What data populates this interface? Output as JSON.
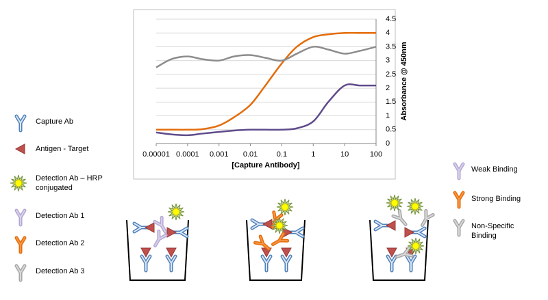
{
  "chart_data": {
    "type": "line",
    "x_label": "[Capture Antibody]",
    "y_label": "Absorbance @ 450nm",
    "log_x": true,
    "grid": true,
    "y_axis_side": "right",
    "x": [
      1e-05,
      3e-05,
      0.0001,
      0.0003,
      0.001,
      0.003,
      0.01,
      0.03,
      0.1,
      0.3,
      1,
      3,
      10,
      30,
      100
    ],
    "series": [
      {
        "name": "Weak Binding",
        "color": "#5f4b8b",
        "values": [
          0.4,
          0.33,
          0.3,
          0.36,
          0.42,
          0.47,
          0.5,
          0.5,
          0.5,
          0.55,
          0.8,
          1.5,
          2.1,
          2.1,
          2.1
        ]
      },
      {
        "name": "Strong Binding",
        "color": "#e46c0a",
        "values": [
          0.5,
          0.5,
          0.5,
          0.52,
          0.65,
          0.95,
          1.4,
          2.1,
          2.9,
          3.5,
          3.85,
          3.95,
          4.0,
          4.0,
          4.0
        ]
      },
      {
        "name": "Non-Specific Binding",
        "color": "#8c8c8c",
        "values": [
          2.75,
          3.05,
          3.15,
          3.05,
          3.0,
          3.15,
          3.2,
          3.1,
          3.0,
          3.25,
          3.5,
          3.4,
          3.25,
          3.35,
          3.5
        ]
      }
    ],
    "xlim": [
      1e-05,
      100
    ],
    "xticks": [
      1e-05,
      0.0001,
      0.001,
      0.01,
      0.1,
      1,
      10,
      100
    ],
    "ylim": [
      0,
      4.5
    ],
    "yticks": [
      0,
      0.5,
      1,
      1.5,
      2,
      2.5,
      3,
      3.5,
      4,
      4.5
    ]
  },
  "legend": [
    "Capture Ab",
    "Antigen - Target",
    "Detection Ab – HRP conjugated",
    "Detection Ab 1",
    "Detection Ab 2",
    "Detection Ab 3"
  ]
}
